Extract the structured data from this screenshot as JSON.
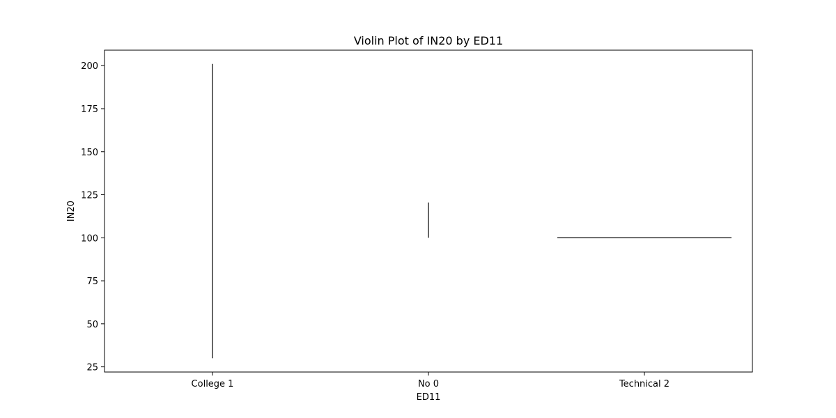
{
  "chart_data": {
    "type": "violin",
    "title": "Violin Plot of IN20 by ED11",
    "xlabel": "ED11",
    "ylabel": "IN20",
    "categories": [
      "College 1",
      "No 0",
      "Technical 2"
    ],
    "ylim": [
      22,
      209
    ],
    "yticks": [
      25,
      50,
      75,
      100,
      125,
      150,
      175,
      200
    ],
    "grid": false,
    "violins": [
      {
        "category": "College 1",
        "min": 30,
        "max": 201,
        "shape": "vertical-line"
      },
      {
        "category": "No 0",
        "min": 100,
        "max": 120.5,
        "shape": "vertical-line"
      },
      {
        "category": "Technical 2",
        "min": 100,
        "max": 100,
        "shape": "horizontal-line"
      }
    ],
    "colors": {
      "line": "#333333",
      "axis": "#000000",
      "background": "#ffffff"
    }
  }
}
